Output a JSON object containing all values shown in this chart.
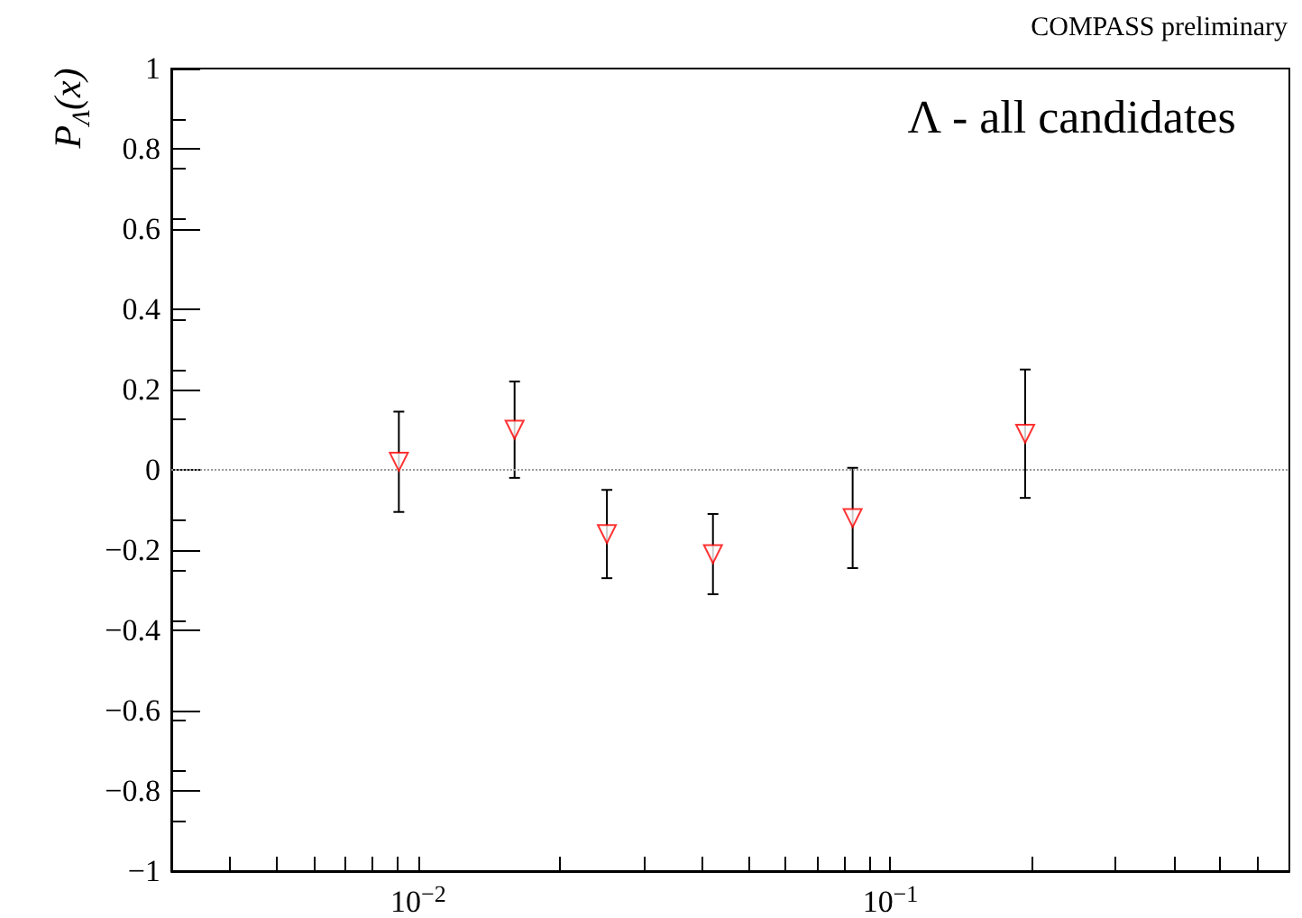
{
  "chart_data": {
    "type": "scatter",
    "ylabel": "P$_{Λ}$(x)",
    "annotations": [
      "COMPASS preliminary",
      "Λ - all candidates"
    ],
    "x": [
      0.0091,
      0.016,
      0.0251,
      0.0421,
      0.0832,
      0.193
    ],
    "series": [
      {
        "color": "#ff0000",
        "values": [
          0.02,
          0.1,
          -0.16,
          -0.21,
          -0.12,
          0.09
        ],
        "errors": [
          0.125,
          0.12,
          0.11,
          0.1,
          0.125,
          0.16
        ]
      }
    ],
    "marker": "triangle-down",
    "log": "x",
    "xlim": [
      0.003,
      0.7
    ],
    "xticks": [
      {
        "value": 0.003,
        "label": null
      },
      {
        "value": 0.004,
        "label": null
      },
      {
        "value": 0.005,
        "label": null
      },
      {
        "value": 0.006,
        "label": null
      },
      {
        "value": 0.007,
        "label": null
      },
      {
        "value": 0.008,
        "label": null
      },
      {
        "value": 0.009,
        "label": null
      },
      {
        "value": 0.01,
        "label": "10$^{−2}$"
      },
      {
        "value": 0.02,
        "label": null
      },
      {
        "value": 0.03,
        "label": null
      },
      {
        "value": 0.04,
        "label": null
      },
      {
        "value": 0.05,
        "label": null
      },
      {
        "value": 0.06,
        "label": null
      },
      {
        "value": 0.07,
        "label": null
      },
      {
        "value": 0.08,
        "label": null
      },
      {
        "value": 0.09,
        "label": null
      },
      {
        "value": 0.1,
        "label": "10$^{−1}$"
      },
      {
        "value": 0.2,
        "label": null
      },
      {
        "value": 0.3,
        "label": null
      },
      {
        "value": 0.4,
        "label": null
      },
      {
        "value": 0.5,
        "label": null
      },
      {
        "value": 0.6,
        "label": null
      }
    ],
    "ylim": [
      -1,
      1
    ],
    "yticks": [
      -1,
      -0.8,
      -0.6,
      -0.4,
      -0.2,
      0,
      0.2,
      0.4,
      0.6,
      0.8,
      1
    ],
    "ref_lines": [
      {
        "axis": "y",
        "value": 0,
        "color": "#999999",
        "line_style": "dotted"
      }
    ]
  }
}
